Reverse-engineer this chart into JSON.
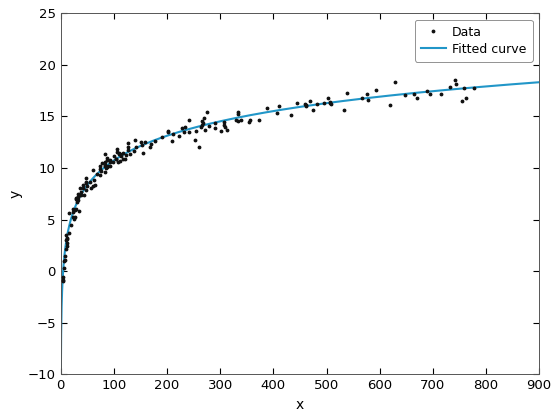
{
  "xlabel": "x",
  "ylabel": "y",
  "xlim": [
    0,
    900
  ],
  "ylim": [
    -10,
    25
  ],
  "xticks": [
    0,
    100,
    200,
    300,
    400,
    500,
    600,
    700,
    800,
    900
  ],
  "yticks": [
    -10,
    -5,
    0,
    5,
    10,
    15,
    20,
    25
  ],
  "fit_a": 3.45,
  "fit_b": -5.15,
  "noise_scale": 0.55,
  "data_color": "#111111",
  "fit_color": "#2196C8",
  "fit_linewidth": 1.5,
  "marker_size": 3.5,
  "legend_labels": [
    "Data",
    "Fitted curve"
  ],
  "background_color": "#ffffff",
  "figsize": [
    5.6,
    4.2
  ],
  "dpi": 100,
  "seed": 7
}
